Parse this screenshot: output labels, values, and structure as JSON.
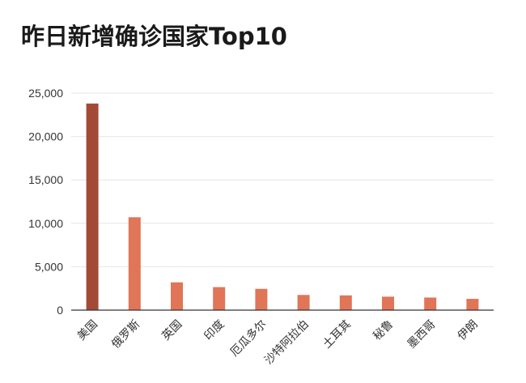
{
  "chart_data": {
    "type": "bar",
    "title": "昨日新增确诊国家Top10",
    "categories": [
      "美国",
      "俄罗斯",
      "英国",
      "印度",
      "厄瓜多尔",
      "沙特阿拉伯",
      "土耳其",
      "秘鲁",
      "墨西哥",
      "伊朗"
    ],
    "values": [
      23800,
      10700,
      3200,
      2650,
      2450,
      1750,
      1700,
      1550,
      1450,
      1300
    ],
    "ylim": [
      0,
      25000
    ],
    "yticks": [
      0,
      5000,
      10000,
      15000,
      20000,
      25000
    ],
    "ytick_labels": [
      "0",
      "5,000",
      "10,000",
      "15,000",
      "20,000",
      "25,000"
    ],
    "xlabel": "",
    "ylabel": "",
    "grid": true,
    "colors": {
      "highlight": "#a34a37",
      "bar": "#e07557",
      "grid": "#e6e6e6",
      "axis": "#333333"
    }
  }
}
